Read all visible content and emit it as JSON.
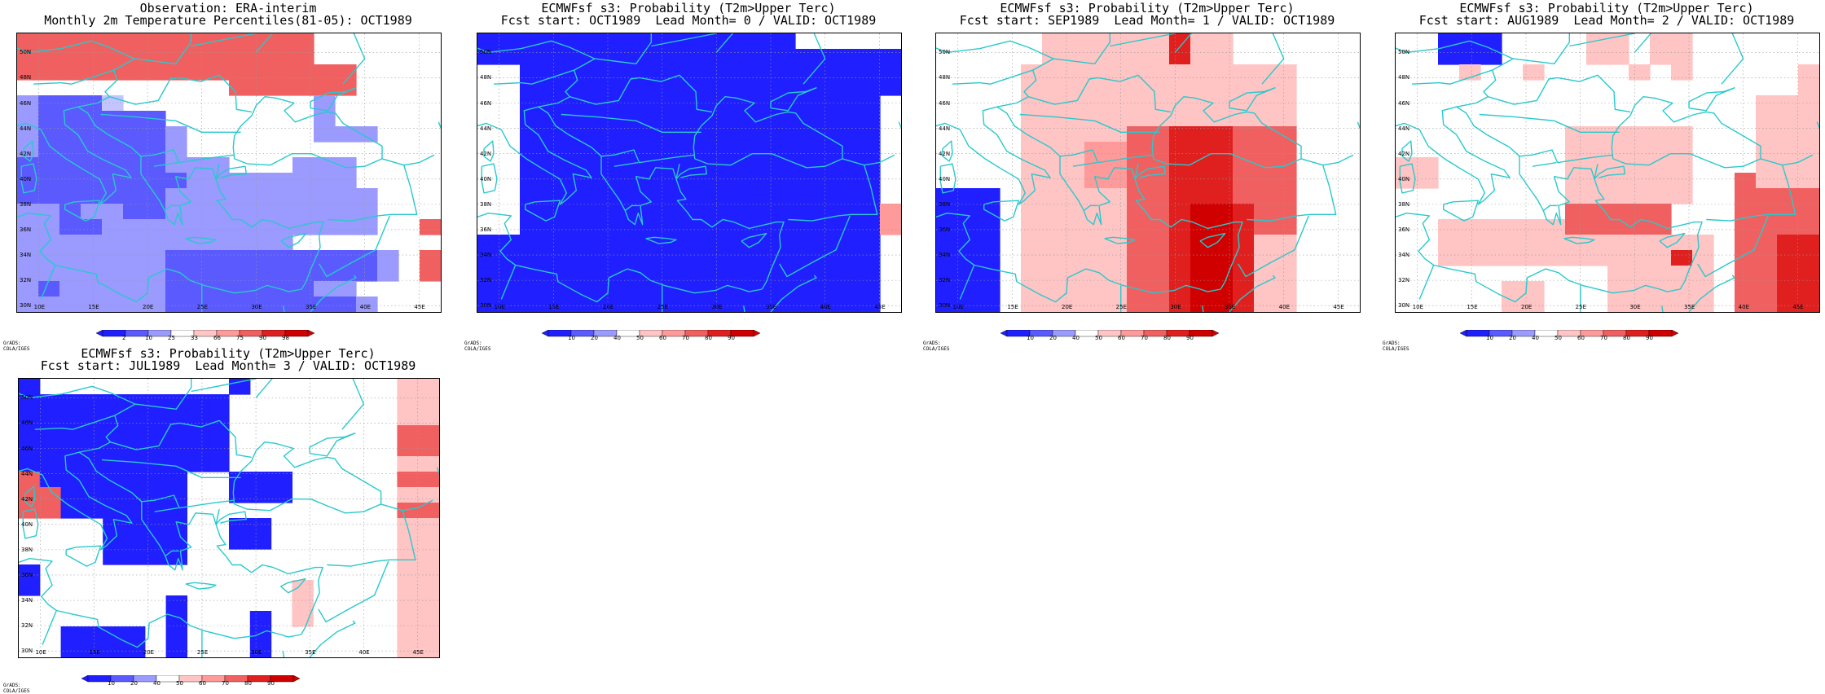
{
  "colors": {
    "blue_dark": "#1f1fff",
    "blue_mid": "#5a5aff",
    "blue_light": "#9a9aff",
    "blue_pale": "#c4c4ff",
    "red_pale": "#ffc4c4",
    "red_light": "#ff9a9a",
    "red_mid": "#f06060",
    "red_dark": "#e01f1f",
    "red_darkest": "#d00000",
    "coast": "#29c9cc"
  },
  "axis": {
    "lat_labels": [
      "30N",
      "32N",
      "34N",
      "36N",
      "38N",
      "40N",
      "42N",
      "44N",
      "46N",
      "48N",
      "50N"
    ],
    "lon_labels": [
      "10E",
      "15E",
      "20E",
      "25E",
      "30E",
      "35E",
      "40E",
      "45E"
    ]
  },
  "credit": "GrADS: COLA/IGES",
  "panels": [
    {
      "id": "obs",
      "title1": "Observation: ERA-interim",
      "title2": "Monthly 2m Temperature Percentiles(81-05): OCT1989",
      "colorbar": [
        "2",
        "10",
        "25",
        "33",
        "66",
        "75",
        "90",
        "98"
      ],
      "grid": [
        "RRRRRRRRRRRRRR......",
        "RRRRRRRRRRRRRR......",
        "RRRRRRRRRRRRRRRR....",
        "..........RRRRRR....",
        "bBBBl.........b.....",
        "bBBBBBB.......b.....",
        "bBBBBBBb......bbb...",
        "bBBBBBBb...........",
        "BBBBBBBbbb...bbb....",
        "BBBBBBBBbbbbbbbb....",
        "BBBBBBBbbbbbbbbbb...",
        "bbBbbBBbbbbbbbbbb...",
        "bbBBbbbbbbbbbbbbb..R",
        "bbbbbbbbbbbbb.......",
        "bbbbbbbBBBBBBBBBBb.R",
        "bbbbbbbBBBBBBBBBBb.R",
        "bBbbbbbBBBBBBBbb....",
        "bbbbbbbBBBBBBBBBb..."
      ]
    },
    {
      "id": "lead0",
      "title1": "ECMWFsf s3: Probability (T2m>Upper Terc)",
      "title2": "Fcst start: OCT1989  Lead Month= 0 / VALID: OCT1989",
      "colorbar": [
        "10",
        "20",
        "40",
        "50",
        "60",
        "70",
        "80",
        "90"
      ]
    },
    {
      "id": "lead1",
      "title1": "ECMWFsf s3: Probability (T2m>Upper Terc)",
      "title2": "Fcst start: SEP1989  Lead Month= 1 / VALID: OCT1989",
      "colorbar": [
        "10",
        "20",
        "40",
        "50",
        "60",
        "70",
        "80",
        "90"
      ]
    },
    {
      "id": "lead2",
      "title1": "ECMWFsf s3: Probability (T2m>Upper Terc)",
      "title2": "Fcst start: AUG1989  Lead Month= 2 / VALID: OCT1989",
      "colorbar": [
        "10",
        "20",
        "40",
        "50",
        "60",
        "70",
        "80",
        "90"
      ]
    },
    {
      "id": "lead3",
      "title1": "ECMWFsf s3: Probability (T2m>Upper Terc)",
      "title2": "Fcst start: JUL1989  Lead Month= 3 / VALID: OCT1989",
      "colorbar": [
        "10",
        "20",
        "40",
        "50",
        "60",
        "70",
        "80",
        "90"
      ]
    }
  ]
}
